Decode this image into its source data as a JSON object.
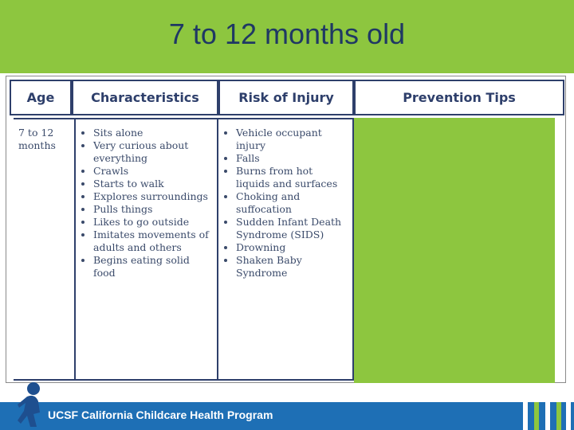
{
  "title": "7 to 12 months old",
  "table": {
    "headers": [
      "Age",
      "Characteristics",
      "Risk of Injury",
      "Prevention Tips"
    ],
    "rows": [
      {
        "age": "7 to 12 months",
        "characteristics": [
          "Sits alone",
          "Very curious about everything",
          "Crawls",
          "Starts to walk",
          "Explores surroundings",
          "Pulls things",
          "Likes to go outside",
          "Imitates movements of adults and others",
          "Begins eating solid food"
        ],
        "risks": [
          "Vehicle occupant injury",
          "Falls",
          "Burns from hot liquids and surfaces",
          "Choking and suffocation",
          "Sudden Infant Death Syndrome (SIDS)",
          "Drowning",
          "Shaken Baby Syndrome"
        ]
      }
    ]
  },
  "footer": {
    "program": "UCSF California Childcare Health Program"
  }
}
